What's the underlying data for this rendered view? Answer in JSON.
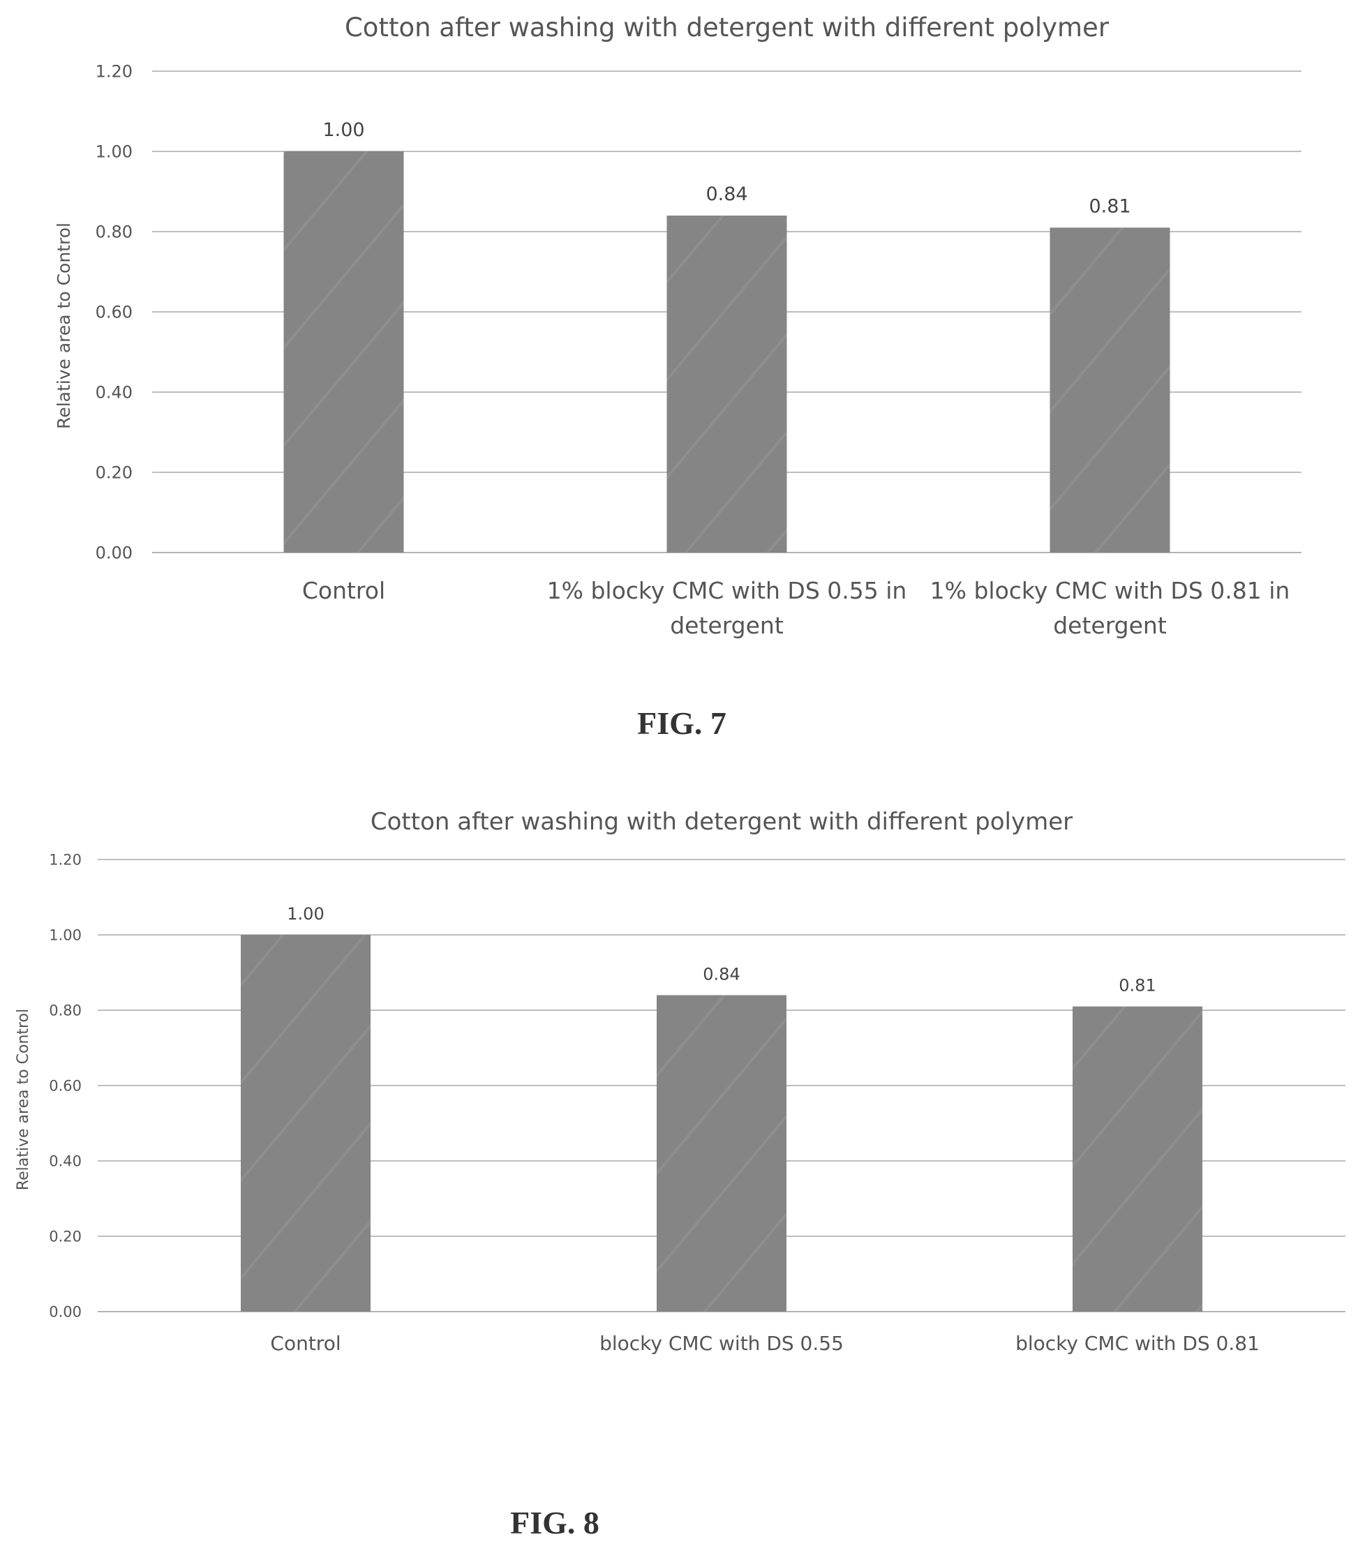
{
  "figures": [
    {
      "caption": "FIG. 7",
      "chart_data": {
        "type": "bar",
        "title": "Cotton after washing with detergent with different polymer",
        "xlabel": "",
        "ylabel": "Relative area to Control",
        "ylim": [
          0,
          1.2
        ],
        "yticks": [
          "0.00",
          "0.20",
          "0.40",
          "0.60",
          "0.80",
          "1.00",
          "1.20"
        ],
        "grid": true,
        "categories": [
          [
            "Control"
          ],
          [
            "1% blocky CMC with DS 0.55 in",
            "detergent"
          ],
          [
            "1% blocky CMC with DS 0.81 in",
            "detergent"
          ]
        ],
        "values": [
          1.0,
          0.84,
          0.81
        ],
        "data_labels": [
          "1.00",
          "0.84",
          "0.81"
        ],
        "bar_color": "#858585"
      }
    },
    {
      "caption": "FIG. 8",
      "chart_data": {
        "type": "bar",
        "title": "Cotton after washing with detergent with different polymer",
        "xlabel": "",
        "ylabel": "Relative area to Control",
        "ylim": [
          0,
          1.2
        ],
        "yticks": [
          "0.00",
          "0.20",
          "0.40",
          "0.60",
          "0.80",
          "1.00",
          "1.20"
        ],
        "grid": true,
        "categories": [
          [
            "Control"
          ],
          [
            "blocky CMC with DS 0.55"
          ],
          [
            "blocky CMC with DS 0.81"
          ]
        ],
        "values": [
          1.0,
          0.84,
          0.81
        ],
        "data_labels": [
          "1.00",
          "0.84",
          "0.81"
        ],
        "bar_color": "#858585"
      }
    }
  ]
}
